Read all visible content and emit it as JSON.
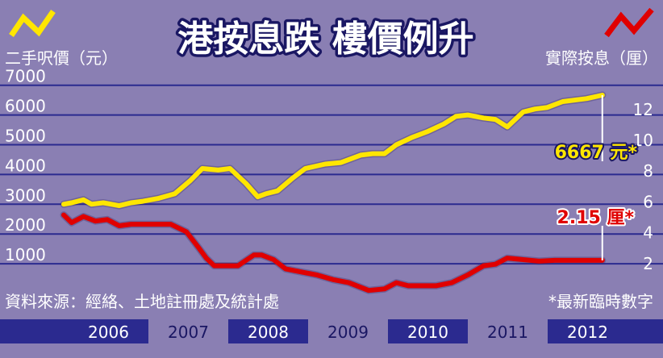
{
  "chart_data": {
    "type": "line",
    "title": "港按息跌 樓價例升",
    "left_axis": {
      "label": "二手呎價（元）",
      "ticks": [
        1000,
        2000,
        3000,
        4000,
        5000,
        6000,
        7000
      ],
      "ylim": [
        0,
        7000
      ]
    },
    "right_axis": {
      "label": "實際按息（厘）",
      "ticks": [
        2,
        4,
        6,
        8,
        10,
        12
      ],
      "ylim": [
        0,
        13
      ]
    },
    "x_axis": {
      "ticks": [
        "2006",
        "2007",
        "2008",
        "2009",
        "2010",
        "2011",
        "2012"
      ],
      "xlim": [
        2005.95,
        2013.15
      ]
    },
    "series": [
      {
        "axis": "left",
        "color": "#ffe600",
        "x": [
          2006.0,
          2006.1,
          2006.25,
          2006.35,
          2006.5,
          2006.7,
          2006.85,
          2007.0,
          2007.2,
          2007.4,
          2007.6,
          2007.75,
          2007.95,
          2008.1,
          2008.3,
          2008.45,
          2008.55,
          2008.7,
          2008.9,
          2009.05,
          2009.3,
          2009.5,
          2009.75,
          2009.9,
          2010.05,
          2010.2,
          2010.4,
          2010.6,
          2010.8,
          2010.95,
          2011.1,
          2011.3,
          2011.45,
          2011.6,
          2011.8,
          2011.95,
          2012.1,
          2012.3,
          2012.45,
          2012.6,
          2012.8
        ],
        "y": [
          3000,
          3050,
          3150,
          3000,
          3050,
          2950,
          3050,
          3100,
          3200,
          3350,
          3800,
          4200,
          4150,
          4200,
          3700,
          3250,
          3350,
          3450,
          3900,
          4200,
          4350,
          4400,
          4650,
          4700,
          4700,
          5000,
          5250,
          5450,
          5700,
          5950,
          6000,
          5900,
          5850,
          5600,
          6100,
          6200,
          6250,
          6450,
          6500,
          6550,
          6667
        ]
      },
      {
        "axis": "right",
        "color": "#e00000",
        "x": [
          2006.0,
          2006.1,
          2006.25,
          2006.4,
          2006.55,
          2006.7,
          2006.85,
          2007.0,
          2007.2,
          2007.35,
          2007.55,
          2007.7,
          2007.8,
          2007.9,
          2008.1,
          2008.2,
          2008.4,
          2008.5,
          2008.65,
          2008.8,
          2009.0,
          2009.2,
          2009.4,
          2009.6,
          2009.85,
          2010.05,
          2010.2,
          2010.35,
          2010.5,
          2010.7,
          2010.9,
          2011.1,
          2011.3,
          2011.45,
          2011.6,
          2011.8,
          2012.0,
          2012.2,
          2012.5,
          2012.8
        ],
        "y": [
          5.1,
          4.6,
          5.0,
          4.7,
          4.8,
          4.4,
          4.5,
          4.5,
          4.5,
          4.5,
          4.0,
          3.0,
          2.3,
          1.8,
          1.8,
          1.8,
          2.5,
          2.5,
          2.2,
          1.6,
          1.4,
          1.2,
          0.9,
          0.7,
          0.2,
          0.3,
          0.7,
          0.5,
          0.5,
          0.5,
          0.7,
          1.2,
          1.8,
          1.9,
          2.3,
          2.2,
          2.1,
          2.15,
          2.15,
          2.15
        ]
      }
    ],
    "annotations": [
      {
        "text": "6667 元*",
        "color": "#ffe600",
        "series": 0
      },
      {
        "text": "2.15 厘*",
        "color": "#e00000",
        "series": 1
      }
    ],
    "source": "資料來源：經絡、土地註冊處及統計處",
    "footnote": "*最新臨時數字"
  }
}
